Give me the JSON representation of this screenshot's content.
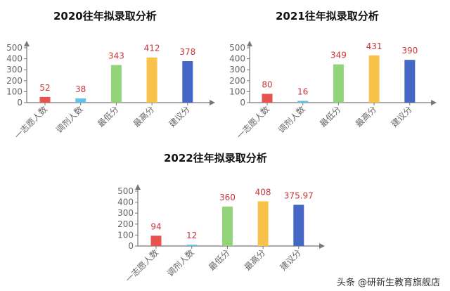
{
  "chart_data": [
    {
      "type": "bar",
      "title": "2020往年拟录取分析",
      "categories": [
        "一志愿人数",
        "调剂人数",
        "最低分",
        "最高分",
        "建议分"
      ],
      "values": [
        52,
        38,
        343,
        412,
        378
      ],
      "value_labels": [
        "52",
        "38",
        "343",
        "412",
        "378"
      ],
      "colors": [
        "#e8524f",
        "#5fc3ea",
        "#93d47a",
        "#f9c24a",
        "#4466c4"
      ],
      "xlabel": "",
      "ylabel": "",
      "yticks": [
        0,
        100,
        200,
        300,
        400,
        500
      ],
      "ylim": [
        0,
        500
      ],
      "grid": false,
      "legend": "none"
    },
    {
      "type": "bar",
      "title": "2021往年拟录取分析",
      "categories": [
        "一志愿人数",
        "调剂人数",
        "最低分",
        "最高分",
        "建议分"
      ],
      "values": [
        80,
        16,
        349,
        431,
        390
      ],
      "value_labels": [
        "80",
        "16",
        "349",
        "431",
        "390"
      ],
      "colors": [
        "#e8524f",
        "#5fc3ea",
        "#93d47a",
        "#f9c24a",
        "#4466c4"
      ],
      "xlabel": "",
      "ylabel": "",
      "yticks": [
        0,
        100,
        200,
        300,
        400,
        500
      ],
      "ylim": [
        0,
        500
      ],
      "grid": false,
      "legend": "none"
    },
    {
      "type": "bar",
      "title": "2022往年拟录取分析",
      "categories": [
        "一志愿人数",
        "调剂人数",
        "最低分",
        "最高分",
        "建议分"
      ],
      "values": [
        94,
        12,
        360,
        408,
        375.97
      ],
      "value_labels": [
        "94",
        "12",
        "360",
        "408",
        "375.97"
      ],
      "colors": [
        "#e8524f",
        "#5fc3ea",
        "#93d47a",
        "#f9c24a",
        "#4466c4"
      ],
      "xlabel": "",
      "ylabel": "",
      "yticks": [
        0,
        100,
        200,
        300,
        400,
        500
      ],
      "ylim": [
        0,
        500
      ],
      "grid": false,
      "legend": "none"
    }
  ],
  "style": {
    "label_color": "#c9353a",
    "axis_color": "#777777",
    "tick_color": "#666666"
  },
  "watermark": "头条 @研新生教育旗舰店"
}
